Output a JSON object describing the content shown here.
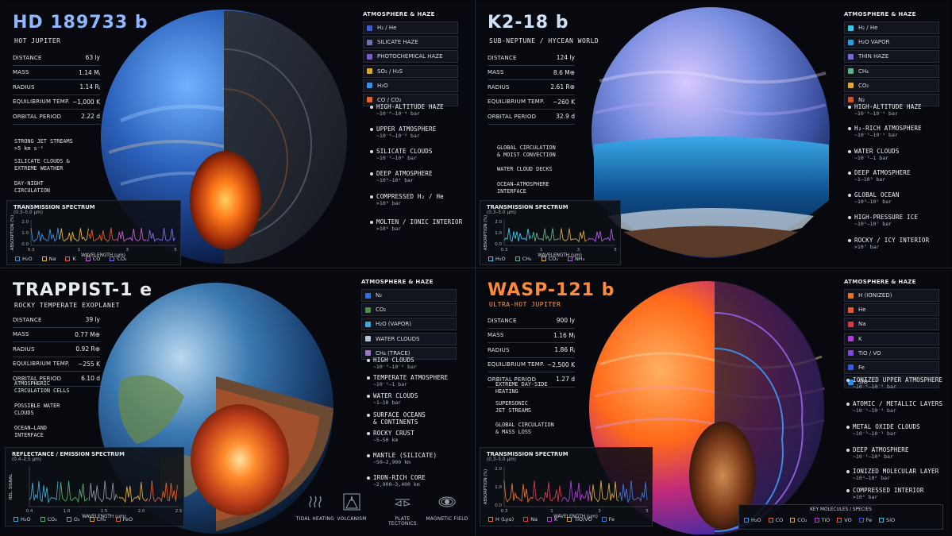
{
  "colors": {
    "q1_title": "#8fb7ff",
    "q2_title": "#cfe0f4",
    "q3_title": "#e9ecf1",
    "q4_title": "#ff8a3c"
  },
  "panels": [
    {
      "id": "hd189733b",
      "title": "HD 189733 b",
      "subtitle": "HOT JUPITER",
      "stats": [
        {
          "label": "DISTANCE",
          "value": "63 ly"
        },
        {
          "label": "MASS",
          "value": "1.14 Mⱼ"
        },
        {
          "label": "RADIUS",
          "value": "1.14 Rⱼ"
        },
        {
          "label": "EQUILIBRIUM TEMP.",
          "value": "~1,000 K"
        },
        {
          "label": "ORBITAL PERIOD",
          "value": "2.22 d"
        }
      ],
      "legend_title": "ATMOSPHERE & HAZE",
      "legend": [
        {
          "label": "H₂ / He",
          "color": "#3f5fd1"
        },
        {
          "label": "SILICATE HAZE",
          "color": "#6a72a8"
        },
        {
          "label": "PHOTOCHEMICAL HAZE",
          "color": "#7a5fc0"
        },
        {
          "label": "SO₂ / H₂S",
          "color": "#d9a634"
        },
        {
          "label": "H₂O",
          "color": "#3b8fe0"
        },
        {
          "label": "CO / CO₂",
          "color": "#e0662d"
        }
      ],
      "layers": [
        {
          "name": "HIGH-ALTITUDE HAZE",
          "pressure": "~10⁻⁶–10⁻⁴ bar"
        },
        {
          "name": "UPPER ATMOSPHERE",
          "pressure": "~10⁻⁴–10⁻² bar"
        },
        {
          "name": "SILICATE CLOUDS",
          "pressure": "~10⁻²–10⁰ bar"
        },
        {
          "name": "DEEP ATMOSPHERE",
          "pressure": "~10⁰–10¹ bar"
        },
        {
          "name": "COMPRESSED H₂ / He",
          "pressure": ">10³ bar"
        },
        {
          "name": "MOLTEN / IONIC INTERIOR",
          "pressure": ">10⁴ bar"
        }
      ],
      "callouts": [
        {
          "text": "STRONG JET STREAMS",
          "sub": ">5 km s⁻¹"
        },
        {
          "text": "SILICATE CLOUDS &",
          "sub": "EXTREME WEATHER"
        },
        {
          "text": "DAY-NIGHT",
          "sub": "CIRCULATION"
        }
      ],
      "spectrum": {
        "title": "TRANSMISSION SPECTRUM",
        "range": "(0.3–5.0 μm)",
        "xlabel": "WAVELENGTH (μm)",
        "ylabel": "ABSORPTION (%)",
        "yticks": [
          "2.0",
          "1.0",
          "0.0"
        ],
        "xticks": [
          "0.3",
          "1",
          "3",
          "5"
        ],
        "keys": [
          {
            "label": "H₂O",
            "color": "#3b8fe0"
          },
          {
            "label": "Na",
            "color": "#e6b33a"
          },
          {
            "label": "K",
            "color": "#e05a2d"
          },
          {
            "label": "CO",
            "color": "#c85ad8"
          },
          {
            "label": "CO₂",
            "color": "#7a6cf0"
          }
        ]
      }
    },
    {
      "id": "k218b",
      "title": "K2-18 b",
      "subtitle": "SUB-NEPTUNE / HYCEAN WORLD",
      "stats": [
        {
          "label": "DISTANCE",
          "value": "124 ly"
        },
        {
          "label": "MASS",
          "value": "8.6 M⊕"
        },
        {
          "label": "RADIUS",
          "value": "2.61 R⊕"
        },
        {
          "label": "EQUILIBRIUM TEMP.",
          "value": "~260 K"
        },
        {
          "label": "ORBITAL PERIOD",
          "value": "32.9 d"
        }
      ],
      "legend_title": "ATMOSPHERE & HAZE",
      "legend": [
        {
          "label": "H₂ / He",
          "color": "#3ec5e8"
        },
        {
          "label": "H₂O VAPOR",
          "color": "#2e9fd6"
        },
        {
          "label": "THIN HAZE",
          "color": "#7a6cd0"
        },
        {
          "label": "CH₄",
          "color": "#5fb088"
        },
        {
          "label": "CO₂",
          "color": "#d8a83a"
        },
        {
          "label": "N₂",
          "color": "#c8562d"
        }
      ],
      "layers": [
        {
          "name": "HIGH-ALTITUDE HAZE",
          "pressure": "~10⁻⁶–10⁻⁵ bar"
        },
        {
          "name": "H₂-RICH ATMOSPHERE",
          "pressure": "~10⁻⁵–10⁻² bar"
        },
        {
          "name": "WATER CLOUDS",
          "pressure": "~10⁻²–1 bar"
        },
        {
          "name": "DEEP ATMOSPHERE",
          "pressure": "~1–10³ bar"
        },
        {
          "name": "GLOBAL OCEAN",
          "pressure": "~10³–10⁵ bar"
        },
        {
          "name": "HIGH-PRESSURE ICE",
          "pressure": "~10⁵–10⁷ bar"
        },
        {
          "name": "ROCKY / ICY INTERIOR",
          "pressure": ">10⁷ bar"
        }
      ],
      "callouts": [
        {
          "text": "GLOBAL CIRCULATION",
          "sub": "& MOIST CONVECTION"
        },
        {
          "text": "WATER CLOUD DECKS",
          "sub": ""
        },
        {
          "text": "OCEAN–ATMOSPHERE",
          "sub": "INTERFACE"
        }
      ],
      "spectrum": {
        "title": "TRANSMISSION SPECTRUM",
        "range": "(0.3–5.0 μm)",
        "xlabel": "WAVELENGTH (μm)",
        "ylabel": "ABSORPTION (%)",
        "yticks": [
          "2.0",
          "1.0",
          "0.0"
        ],
        "xticks": [
          "0.3",
          "1",
          "3",
          "5"
        ],
        "keys": [
          {
            "label": "H₂O",
            "color": "#3ec5e8"
          },
          {
            "label": "CH₄",
            "color": "#5fb088"
          },
          {
            "label": "CO₂",
            "color": "#d8a83a"
          },
          {
            "label": "NH₃",
            "color": "#b05ae0"
          }
        ]
      }
    },
    {
      "id": "trappist1e",
      "title": "TRAPPIST-1 e",
      "subtitle": "ROCKY TEMPERATE EXOPLANET",
      "stats": [
        {
          "label": "DISTANCE",
          "value": "39 ly"
        },
        {
          "label": "MASS",
          "value": "0.77 M⊕"
        },
        {
          "label": "RADIUS",
          "value": "0.92 R⊕"
        },
        {
          "label": "EQUILIBRIUM TEMP.",
          "value": "~255 K"
        },
        {
          "label": "ORBITAL PERIOD",
          "value": "6.10 d"
        }
      ],
      "legend_title": "ATMOSPHERE & HAZE",
      "legend": [
        {
          "label": "N₂",
          "color": "#2f6fe0"
        },
        {
          "label": "CO₂",
          "color": "#4e8a4a"
        },
        {
          "label": "H₂O (VAPOR)",
          "color": "#3fa8d8"
        },
        {
          "label": "WATER CLOUDS",
          "color": "#b6c4d8"
        },
        {
          "label": "CH₄ (TRACE)",
          "color": "#9a7ac8"
        }
      ],
      "layers": [
        {
          "name": "HIGH CLOUDS",
          "pressure": "~10⁻³–10⁻² bar"
        },
        {
          "name": "TEMPERATE ATMOSPHERE",
          "pressure": "~10⁻²–1 bar"
        },
        {
          "name": "WATER CLOUDS",
          "pressure": "~1–10 bar"
        },
        {
          "name": "SURFACE OCEANS",
          "pressure": "& CONTINENTS"
        },
        {
          "name": "ROCKY CRUST",
          "pressure": "~5–50 km"
        },
        {
          "name": "MANTLE (SILICATE)",
          "pressure": "~50–2,900 km"
        },
        {
          "name": "IRON-RICH CORE",
          "pressure": "~2,900–3,400 km"
        }
      ],
      "callouts": [
        {
          "text": "ATMOSPHERIC",
          "sub": "CIRCULATION CELLS"
        },
        {
          "text": "POSSIBLE WATER",
          "sub": "CLOUDS"
        },
        {
          "text": "OCEAN–LAND",
          "sub": "INTERFACE"
        }
      ],
      "spectrum": {
        "title": "REFLECTANCE / EMISSION SPECTRUM",
        "range": "(0.4–2.5 μm)",
        "xlabel": "WAVELENGTH (μm)",
        "ylabel": "REL. SIGNAL",
        "yticks": [],
        "xticks": [
          "0.4",
          "1.0",
          "1.5",
          "2.0",
          "2.5"
        ],
        "keys": [
          {
            "label": "H₂O",
            "color": "#3fa8d8"
          },
          {
            "label": "CO₂",
            "color": "#4eb06a"
          },
          {
            "label": "O₂",
            "color": "#8a8fa0"
          },
          {
            "label": "CH₄",
            "color": "#d8a83a"
          },
          {
            "label": "FeO",
            "color": "#d8602d"
          }
        ]
      },
      "processes": [
        {
          "label": "TIDAL HEATING",
          "icon": "tidal-heating-icon"
        },
        {
          "label": "VOLCANISM",
          "icon": "volcanism-icon"
        },
        {
          "label": "PLATE TECTONICS",
          "icon": "plate-tectonics-icon"
        },
        {
          "label": "MAGNETIC FIELD",
          "icon": "magnetic-field-icon"
        }
      ]
    },
    {
      "id": "wasp121b",
      "title": "WASP-121 b",
      "subtitle": "ULTRA-HOT JUPITER",
      "stats": [
        {
          "label": "DISTANCE",
          "value": "900 ly"
        },
        {
          "label": "MASS",
          "value": "1.16 Mⱼ"
        },
        {
          "label": "RADIUS",
          "value": "1.86 Rⱼ"
        },
        {
          "label": "EQUILIBRIUM TEMP.",
          "value": "~2,500 K"
        },
        {
          "label": "ORBITAL PERIOD",
          "value": "1.27 d"
        }
      ],
      "legend_title": "ATMOSPHERE & HAZE",
      "legend": [
        {
          "label": "H (IONIZED)",
          "color": "#e8722d"
        },
        {
          "label": "He",
          "color": "#e8542d"
        },
        {
          "label": "Na",
          "color": "#d83a4a"
        },
        {
          "label": "K",
          "color": "#b03ad8"
        },
        {
          "label": "TiO / VO",
          "color": "#7a4ae0"
        },
        {
          "label": "Fe",
          "color": "#3a5ae0"
        },
        {
          "label": "SiO",
          "color": "#2e8fe0"
        }
      ],
      "layers": [
        {
          "name": "IONIZED UPPER ATMOSPHERE",
          "pressure": "~10⁻⁸–10⁻⁵ bar"
        },
        {
          "name": "ATOMIC / METALLIC LAYERS",
          "pressure": "~10⁻⁵–10⁻³ bar"
        },
        {
          "name": "METAL OXIDE CLOUDS",
          "pressure": "~10⁻³–10⁻¹ bar"
        },
        {
          "name": "DEEP ATMOSPHERE",
          "pressure": "~10⁻¹–10³ bar"
        },
        {
          "name": "IONIZED MOLECULAR LAYER",
          "pressure": "~10³–10⁵ bar"
        },
        {
          "name": "COMPRESSED INTERIOR",
          "pressure": ">10⁵ bar"
        }
      ],
      "callouts": [
        {
          "text": "EXTREME DAY-SIDE",
          "sub": "HEATING"
        },
        {
          "text": "SUPERSONIC",
          "sub": "JET STREAMS"
        },
        {
          "text": "GLOBAL CIRCULATION",
          "sub": "& MASS LOSS"
        }
      ],
      "spectrum": {
        "title": "TRANSMISSION SPECTRUM",
        "range": "(0.3–5.0 μm)",
        "xlabel": "WAVELENGTH (μm)",
        "ylabel": "ABSORPTION (%)",
        "yticks": [
          "2.0",
          "1.0",
          "0.0"
        ],
        "xticks": [
          "0.3",
          "1",
          "3",
          "5"
        ],
        "keys": [
          {
            "label": "H (Lyα)",
            "color": "#e8722d"
          },
          {
            "label": "Na",
            "color": "#d83a4a"
          },
          {
            "label": "K",
            "color": "#b03ad8"
          },
          {
            "label": "TiO/VO",
            "color": "#d8a83a"
          },
          {
            "label": "Fe",
            "color": "#3a7ae0"
          }
        ]
      },
      "key_molecules": {
        "title": "KEY MOLECULES / SPECIES",
        "items": [
          {
            "label": "H₂O",
            "color": "#3b8fe0"
          },
          {
            "label": "CO",
            "color": "#e0662d"
          },
          {
            "label": "CO₂",
            "color": "#d8a83a"
          },
          {
            "label": "TiO",
            "color": "#b03ad8"
          },
          {
            "label": "VO",
            "color": "#e8542d"
          },
          {
            "label": "Fe",
            "color": "#3a5ae0"
          },
          {
            "label": "SiO",
            "color": "#2ec0e0"
          }
        ]
      }
    }
  ]
}
